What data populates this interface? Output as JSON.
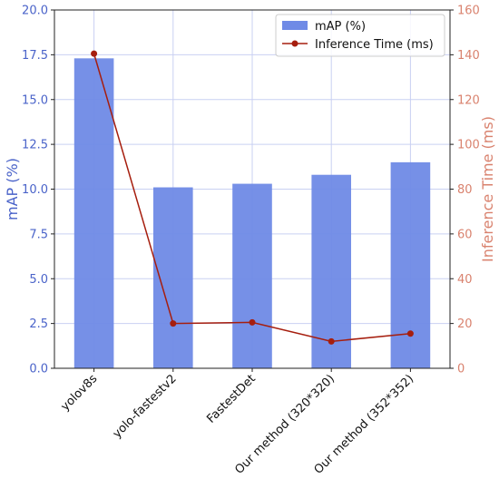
{
  "chart_data": {
    "type": "bar",
    "categories": [
      "yolov8s",
      "yolo-fastestv2",
      "FastestDet",
      "Our method (320*320)",
      "Our method (352*352)"
    ],
    "series": [
      {
        "name": "mAP (%)",
        "type": "bar",
        "axis": "left",
        "color": "#6f8ae6",
        "values": [
          17.3,
          10.1,
          10.3,
          10.8,
          11.5
        ]
      },
      {
        "name": "Inference Time (ms)",
        "type": "line",
        "axis": "right",
        "color": "#a61e0e",
        "values": [
          140.5,
          20.0,
          20.5,
          12.0,
          15.5
        ]
      }
    ],
    "ylabel": "mAP (%)",
    "ylabel_right": "Inference Time (ms)",
    "ylim": [
      0,
      20
    ],
    "ylim_right": [
      0,
      160
    ],
    "yticks": [
      "0.0",
      "2.5",
      "5.0",
      "7.5",
      "10.0",
      "12.5",
      "15.0",
      "17.5",
      "20.0"
    ],
    "yticks_right": [
      "0",
      "20",
      "40",
      "60",
      "80",
      "100",
      "120",
      "140",
      "160"
    ],
    "grid": true,
    "legend_position": "top-right",
    "left_axis_color": "#4a63c9",
    "right_axis_color": "#d9826e"
  }
}
